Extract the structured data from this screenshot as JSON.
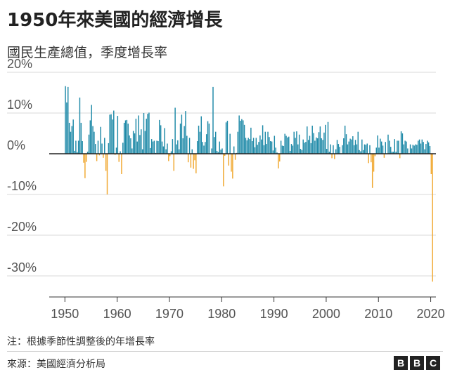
{
  "header": {
    "title": "1950年來美國的經濟增長",
    "subtitle": "國民生產總值，季度增長率"
  },
  "footer": {
    "note": "注：根據季節性調整後的年增長率",
    "source": "來源：美國經濟分析局",
    "logo_letters": [
      "B",
      "B",
      "C"
    ]
  },
  "colors": {
    "positive": "#1f8aa8",
    "negative": "#f0a830",
    "grid": "#d9d9d9",
    "zero_line": "#222222"
  },
  "chart_data": {
    "type": "bar",
    "title": "1950年來美國的經濟增長",
    "subtitle": "國民生產總值，季度增長率",
    "xlabel": "",
    "ylabel": "",
    "x_range": [
      1947,
      2021
    ],
    "ylim": [
      -35,
      20
    ],
    "x_ticks": [
      1950,
      1960,
      1970,
      1980,
      1990,
      2000,
      2010,
      2020
    ],
    "y_ticks": [
      20,
      10,
      0,
      -10,
      -20,
      -30
    ],
    "y_tick_labels": [
      "20%",
      "10%",
      "0%",
      "-10%",
      "-20%",
      "-30%"
    ],
    "grid": true,
    "quarterly_series": [
      {
        "year": 1950,
        "values": [
          16.6,
          12.6,
          16.4,
          7.6
        ]
      },
      {
        "year": 1951,
        "values": [
          5.4,
          6.8,
          8.4,
          0.7
        ]
      },
      {
        "year": 1952,
        "values": [
          3.2,
          0.4,
          3.2,
          13.8
        ]
      },
      {
        "year": 1953,
        "values": [
          7.6,
          3.1,
          -2.2,
          -6.0
        ]
      },
      {
        "year": 1954,
        "values": [
          -2.0,
          0.5,
          4.7,
          8.2
        ]
      },
      {
        "year": 1955,
        "values": [
          12.0,
          6.8,
          5.4,
          2.4
        ]
      },
      {
        "year": 1956,
        "values": [
          -1.8,
          3.2,
          -0.4,
          6.6
        ]
      },
      {
        "year": 1957,
        "values": [
          2.5,
          -1.0,
          3.9,
          -4.2
        ]
      },
      {
        "year": 1958,
        "values": [
          -10.0,
          2.6,
          9.6,
          9.7
        ]
      },
      {
        "year": 1959,
        "values": [
          8.4,
          10.6,
          -0.3,
          1.5
        ]
      },
      {
        "year": 1960,
        "values": [
          9.3,
          -2.0,
          0.6,
          -5.0
        ]
      },
      {
        "year": 1961,
        "values": [
          2.7,
          7.6,
          8.2,
          8.3
        ]
      },
      {
        "year": 1962,
        "values": [
          7.4,
          4.5,
          3.8,
          1.3
        ]
      },
      {
        "year": 1963,
        "values": [
          5.6,
          5.0,
          8.6,
          3.0
        ]
      },
      {
        "year": 1964,
        "values": [
          9.4,
          4.6,
          6.0,
          1.1
        ]
      },
      {
        "year": 1965,
        "values": [
          10.0,
          5.6,
          8.6,
          9.8
        ]
      },
      {
        "year": 1966,
        "values": [
          10.1,
          1.4,
          3.6,
          3.0
        ]
      },
      {
        "year": 1967,
        "values": [
          3.2,
          0.2,
          3.2,
          3.1
        ]
      },
      {
        "year": 1968,
        "values": [
          8.3,
          7.0,
          3.0,
          1.8
        ]
      },
      {
        "year": 1969,
        "values": [
          6.3,
          1.1,
          2.5,
          -1.8
        ]
      },
      {
        "year": 1970,
        "values": [
          -0.6,
          0.6,
          3.6,
          -4.2
        ]
      },
      {
        "year": 1971,
        "values": [
          11.3,
          2.3,
          3.3,
          1.1
        ]
      },
      {
        "year": 1972,
        "values": [
          7.4,
          9.6,
          3.8,
          6.8
        ]
      },
      {
        "year": 1973,
        "values": [
          10.5,
          4.4,
          -2.1,
          3.9
        ]
      },
      {
        "year": 1974,
        "values": [
          -3.4,
          1.1,
          -3.7,
          -1.6
        ]
      },
      {
        "year": 1975,
        "values": [
          -4.8,
          3.1,
          6.9,
          5.4
        ]
      },
      {
        "year": 1976,
        "values": [
          9.2,
          2.9,
          2.0,
          2.9
        ]
      },
      {
        "year": 1977,
        "values": [
          4.8,
          8.0,
          7.4,
          0.1
        ]
      },
      {
        "year": 1978,
        "values": [
          1.3,
          16.4,
          4.1,
          5.4
        ]
      },
      {
        "year": 1979,
        "values": [
          0.7,
          0.4,
          3.0,
          1.0
        ]
      },
      {
        "year": 1980,
        "values": [
          1.3,
          -8.0,
          -0.5,
          7.7
        ]
      },
      {
        "year": 1981,
        "values": [
          8.1,
          -2.9,
          4.9,
          -4.4
        ]
      },
      {
        "year": 1982,
        "values": [
          -6.1,
          1.8,
          -1.5,
          0.2
        ]
      },
      {
        "year": 1983,
        "values": [
          5.4,
          9.4,
          8.1,
          8.5
        ]
      },
      {
        "year": 1984,
        "values": [
          8.2,
          7.1,
          3.9,
          3.3
        ]
      },
      {
        "year": 1985,
        "values": [
          3.9,
          3.6,
          6.4,
          3.1
        ]
      },
      {
        "year": 1986,
        "values": [
          3.9,
          1.6,
          3.9,
          2.2
        ]
      },
      {
        "year": 1987,
        "values": [
          2.9,
          4.5,
          3.5,
          7.0
        ]
      },
      {
        "year": 1988,
        "values": [
          2.1,
          5.4,
          2.4,
          5.4
        ]
      },
      {
        "year": 1989,
        "values": [
          4.1,
          3.1,
          3.0,
          0.8
        ]
      },
      {
        "year": 1990,
        "values": [
          4.4,
          1.5,
          0.3,
          -3.6
        ]
      },
      {
        "year": 1991,
        "values": [
          -1.9,
          3.2,
          2.0,
          1.9
        ]
      },
      {
        "year": 1992,
        "values": [
          4.9,
          4.4,
          4.0,
          4.2
        ]
      },
      {
        "year": 1993,
        "values": [
          0.7,
          2.4,
          2.0,
          5.4
        ]
      },
      {
        "year": 1994,
        "values": [
          3.9,
          5.5,
          2.3,
          4.7
        ]
      },
      {
        "year": 1995,
        "values": [
          1.2,
          0.9,
          3.5,
          2.7
        ]
      },
      {
        "year": 1996,
        "values": [
          2.9,
          6.7,
          3.4,
          4.4
        ]
      },
      {
        "year": 1997,
        "values": [
          2.6,
          6.9,
          5.1,
          3.2
        ]
      },
      {
        "year": 1998,
        "values": [
          4.0,
          3.8,
          5.3,
          6.7
        ]
      },
      {
        "year": 1999,
        "values": [
          3.8,
          3.4,
          5.2,
          7.1
        ]
      },
      {
        "year": 2000,
        "values": [
          1.2,
          7.8,
          0.5,
          2.3
        ]
      },
      {
        "year": 2001,
        "values": [
          -1.1,
          2.1,
          -1.3,
          1.1
        ]
      },
      {
        "year": 2002,
        "values": [
          3.4,
          2.4,
          1.7,
          0.1
        ]
      },
      {
        "year": 2003,
        "values": [
          2.1,
          3.8,
          6.9,
          4.8
        ]
      },
      {
        "year": 2004,
        "values": [
          2.3,
          3.0,
          3.7,
          3.5
        ]
      },
      {
        "year": 2005,
        "values": [
          4.3,
          2.1,
          3.4,
          2.3
        ]
      },
      {
        "year": 2006,
        "values": [
          5.4,
          0.9,
          0.6,
          3.5
        ]
      },
      {
        "year": 2007,
        "values": [
          0.9,
          2.3,
          2.2,
          2.5
        ]
      },
      {
        "year": 2008,
        "values": [
          -2.3,
          2.1,
          -2.1,
          -8.4
        ]
      },
      {
        "year": 2009,
        "values": [
          -4.4,
          -0.6,
          1.5,
          4.5
        ]
      },
      {
        "year": 2010,
        "values": [
          1.5,
          3.7,
          3.0,
          2.0
        ]
      },
      {
        "year": 2011,
        "values": [
          -1.0,
          2.9,
          -0.1,
          4.7
        ]
      },
      {
        "year": 2012,
        "values": [
          3.2,
          1.7,
          0.5,
          0.5
        ]
      },
      {
        "year": 2013,
        "values": [
          3.6,
          0.5,
          3.2,
          3.2
        ]
      },
      {
        "year": 2014,
        "values": [
          -1.1,
          5.5,
          5.0,
          2.3
        ]
      },
      {
        "year": 2015,
        "values": [
          3.2,
          3.0,
          1.3,
          0.1
        ]
      },
      {
        "year": 2016,
        "values": [
          2.3,
          1.3,
          2.2,
          2.0
        ]
      },
      {
        "year": 2017,
        "values": [
          2.3,
          2.2,
          3.2,
          3.5
        ]
      },
      {
        "year": 2018,
        "values": [
          2.5,
          3.5,
          2.9,
          1.1
        ]
      },
      {
        "year": 2019,
        "values": [
          2.4,
          3.2,
          2.8,
          1.9
        ]
      },
      {
        "year": 2020,
        "values": [
          -5.0,
          -31.4
        ]
      }
    ]
  }
}
